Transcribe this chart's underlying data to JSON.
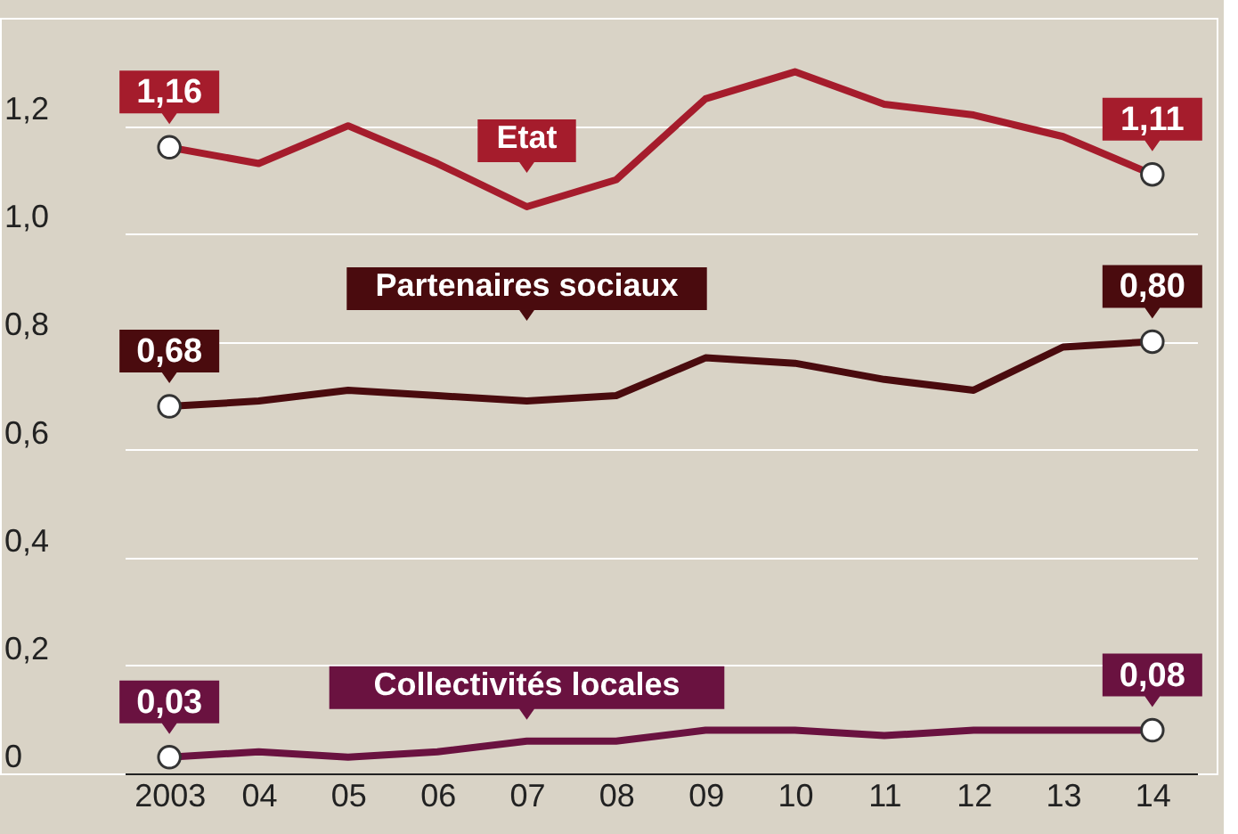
{
  "chart_data": {
    "type": "line",
    "categories": [
      "2003",
      "04",
      "05",
      "06",
      "07",
      "08",
      "09",
      "10",
      "11",
      "12",
      "13",
      "14"
    ],
    "series": [
      {
        "name": "Etat",
        "color": "#a51c2c",
        "values": [
          1.16,
          1.13,
          1.2,
          1.13,
          1.05,
          1.1,
          1.25,
          1.3,
          1.24,
          1.22,
          1.18,
          1.11
        ],
        "value_labels": [
          "1,16",
          null,
          null,
          null,
          null,
          null,
          null,
          null,
          null,
          null,
          null,
          "1,11"
        ]
      },
      {
        "name": "Partenaires sociaux",
        "color": "#4a0b0e",
        "values": [
          0.68,
          0.69,
          0.71,
          0.7,
          0.69,
          0.7,
          0.77,
          0.76,
          0.73,
          0.71,
          0.79,
          0.8
        ],
        "value_labels": [
          "0,68",
          null,
          null,
          null,
          null,
          null,
          null,
          null,
          null,
          null,
          null,
          "0,80"
        ]
      },
      {
        "name": "Collectivités locales",
        "color": "#6a1240",
        "values": [
          0.03,
          0.04,
          0.03,
          0.04,
          0.06,
          0.06,
          0.08,
          0.08,
          0.07,
          0.08,
          0.08,
          0.08
        ],
        "value_labels": [
          "0,03",
          null,
          null,
          null,
          null,
          null,
          null,
          null,
          null,
          null,
          null,
          "0,08"
        ]
      }
    ],
    "ylim": [
      0,
      1.4
    ],
    "yticks": [
      0,
      {
        "value": 0.2,
        "label": "0,2"
      },
      {
        "value": 0.4,
        "label": "0,4"
      },
      {
        "value": 0.6,
        "label": "0,6"
      },
      {
        "value": 0.8,
        "label": "0,8"
      },
      {
        "value": 1.0,
        "label": "1,0"
      },
      {
        "value": 1.2,
        "label": "1,2"
      }
    ],
    "grid": "y",
    "line_style": "solid"
  }
}
